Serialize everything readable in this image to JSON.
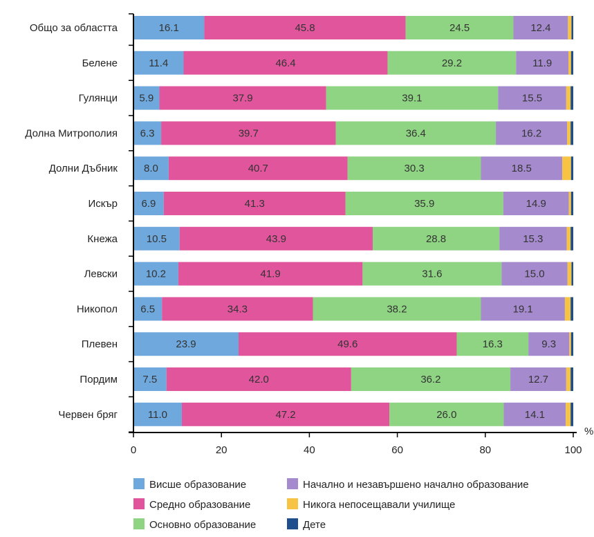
{
  "chart_data": {
    "type": "bar",
    "orientation": "horizontal",
    "stacked": true,
    "categories": [
      "Общо за областта",
      "Белене",
      "Гулянци",
      "Долна Митрополия",
      "Долни Дъбник",
      "Искър",
      "Кнежа",
      "Левски",
      "Никопол",
      "Плевен",
      "Пордим",
      "Червен бряг"
    ],
    "series": [
      {
        "name": "Висше образование",
        "color": "#6fa8dc",
        "values": [
          16.1,
          11.4,
          5.9,
          6.3,
          8.0,
          6.9,
          10.5,
          10.2,
          6.5,
          23.9,
          7.5,
          11.0
        ]
      },
      {
        "name": "Средно образование",
        "color": "#e0559b",
        "values": [
          45.8,
          46.4,
          37.9,
          39.7,
          40.7,
          41.3,
          43.9,
          41.9,
          34.3,
          49.6,
          42.0,
          47.2
        ]
      },
      {
        "name": "Основно образование",
        "color": "#8fd483",
        "values": [
          24.5,
          29.2,
          39.1,
          36.4,
          30.3,
          35.9,
          28.8,
          31.6,
          38.2,
          16.3,
          36.2,
          26.0
        ]
      },
      {
        "name": "Начално и незавършено начално образование",
        "color": "#a58bcd",
        "values": [
          12.4,
          11.9,
          15.5,
          16.2,
          18.5,
          14.9,
          15.3,
          15.0,
          19.1,
          9.3,
          12.7,
          14.1
        ]
      },
      {
        "name": "Никога непосещавали училище",
        "color": "#f6c344",
        "values": [
          0.8,
          0.6,
          1.0,
          0.8,
          2.0,
          0.5,
          0.9,
          0.9,
          1.3,
          0.4,
          1.0,
          1.1
        ]
      },
      {
        "name": "Дете",
        "color": "#1f4e8c",
        "values": [
          0.4,
          0.5,
          0.6,
          0.6,
          0.5,
          0.5,
          0.6,
          0.4,
          0.6,
          0.5,
          0.6,
          0.6
        ]
      }
    ],
    "label_series": [
      0,
      1,
      2,
      3
    ],
    "value_labels": [
      [
        "16.1",
        "45.8",
        "24.5",
        "12.4"
      ],
      [
        "11.4",
        "46.4",
        "29.2",
        "11.9"
      ],
      [
        "5.9",
        "37.9",
        "39.1",
        "15.5"
      ],
      [
        "6.3",
        "39.7",
        "36.4",
        "16.2"
      ],
      [
        "8.0",
        "40.7",
        "30.3",
        "18.5"
      ],
      [
        "6.9",
        "41.3",
        "35.9",
        "14.9"
      ],
      [
        "10.5",
        "43.9",
        "28.8",
        "15.3"
      ],
      [
        "10.2",
        "41.9",
        "31.6",
        "15.0"
      ],
      [
        "6.5",
        "34.3",
        "38.2",
        "19.1"
      ],
      [
        "23.9",
        "49.6",
        "16.3",
        "9.3"
      ],
      [
        "7.5",
        "42.0",
        "36.2",
        "12.7"
      ],
      [
        "11.0",
        "47.2",
        "26.0",
        "14.1"
      ]
    ],
    "xlim": [
      0,
      100
    ],
    "xticks": [
      "0",
      "20",
      "40",
      "60",
      "80",
      "100"
    ],
    "xticks_values": [
      0,
      20,
      40,
      60,
      80,
      100
    ],
    "x_unit": "%",
    "grid": false,
    "legend_position": "bottom"
  }
}
